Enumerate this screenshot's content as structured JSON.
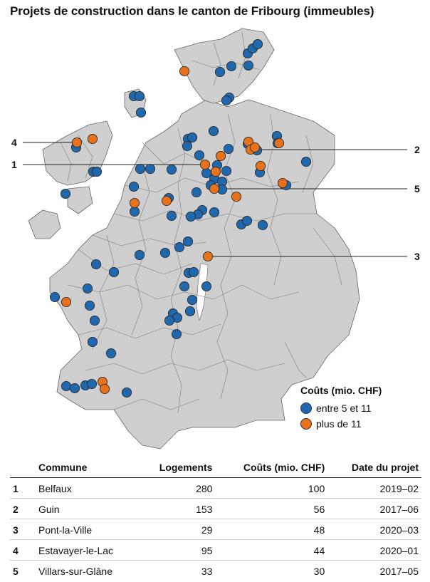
{
  "title": "Projets de construction dans le canton de Fribourg (immeubles)",
  "colors": {
    "blue": "#1f68ad",
    "orange": "#e8711c",
    "land": "#cfcfcf",
    "border": "#666666"
  },
  "legend": {
    "title": "Coûts (mio. CHF)",
    "items": [
      {
        "label": "entre 5 et 11",
        "color": "#1f68ad"
      },
      {
        "label": "plus de 11",
        "color": "#e8711c"
      }
    ]
  },
  "callouts": [
    "4",
    "1",
    "2",
    "5",
    "3"
  ],
  "table": {
    "headers": [
      "",
      "Commune",
      "Logements",
      "Coûts (mio. CHF)",
      "Date du projet"
    ],
    "rows": [
      [
        "1",
        "Belfaux",
        "280",
        "100",
        "2019–02"
      ],
      [
        "2",
        "Guin",
        "153",
        "56",
        "2017–06"
      ],
      [
        "3",
        "Pont-la-Ville",
        "29",
        "48",
        "2020–03"
      ],
      [
        "4",
        "Estavayer-le-Lac",
        "95",
        "44",
        "2020–01"
      ],
      [
        "5",
        "Villars-sur-Glâne",
        "33",
        "30",
        "2017–05"
      ]
    ]
  }
}
